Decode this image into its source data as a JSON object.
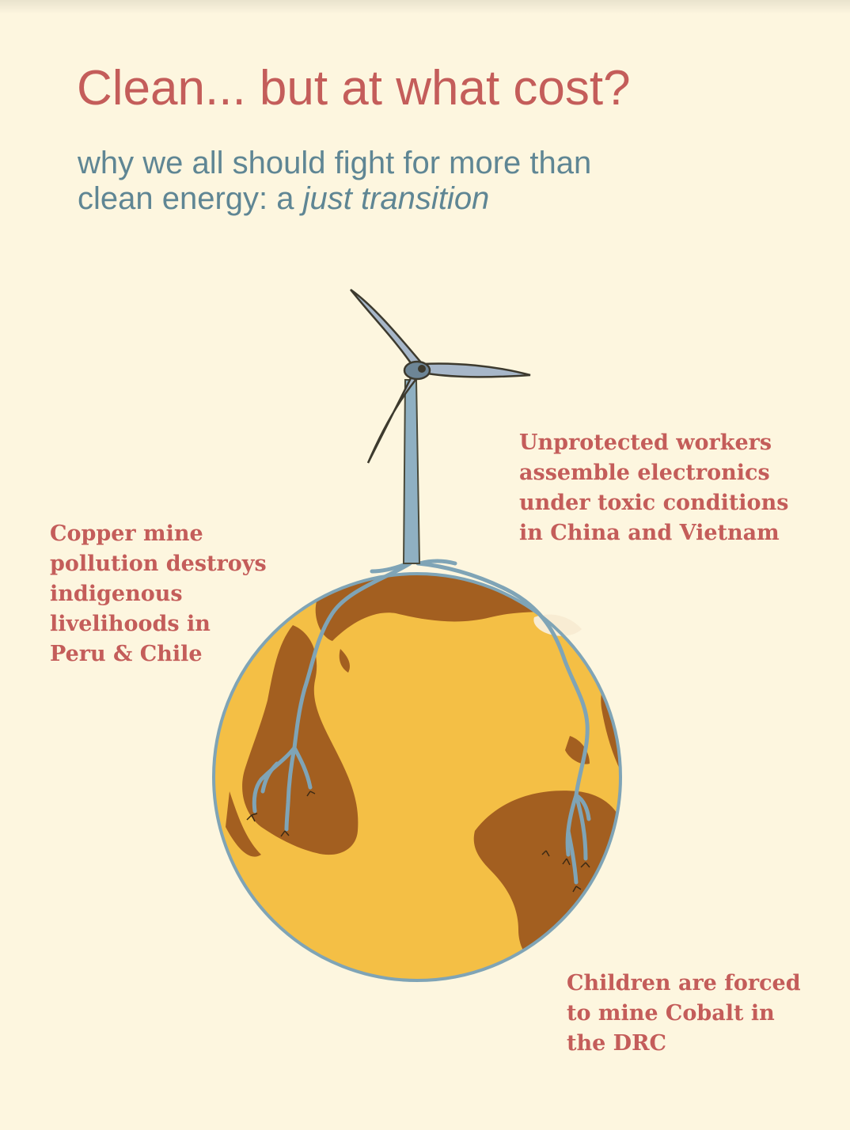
{
  "title": "Clean... but at what cost?",
  "subtitle": {
    "line1": "why we all should fight for more than",
    "line2_prefix": "clean energy: a ",
    "line2_emphasis": "just transition"
  },
  "notes": {
    "copper": {
      "lines": [
        "Copper mine",
        "pollution destroys",
        "indigenous",
        "livelihoods in",
        "Peru & Chile"
      ]
    },
    "workers": {
      "lines": [
        "Unprotected workers",
        "assemble electronics",
        "under toxic conditions",
        "in China and Vietnam"
      ]
    },
    "cobalt": {
      "lines": [
        "Children are forced",
        "to mine Cobalt in",
        "the DRC"
      ]
    }
  },
  "colors": {
    "background": "#fdf6df",
    "title": "#c45d5a",
    "subtitle": "#5f8694",
    "globe": "#f4bf45",
    "land": "#a35f20",
    "roots": "#7fa4b6",
    "turbine_blade": "#9fb3c6"
  },
  "icons": {
    "globe": "globe-illustration",
    "turbine": "wind-turbine-illustration"
  }
}
